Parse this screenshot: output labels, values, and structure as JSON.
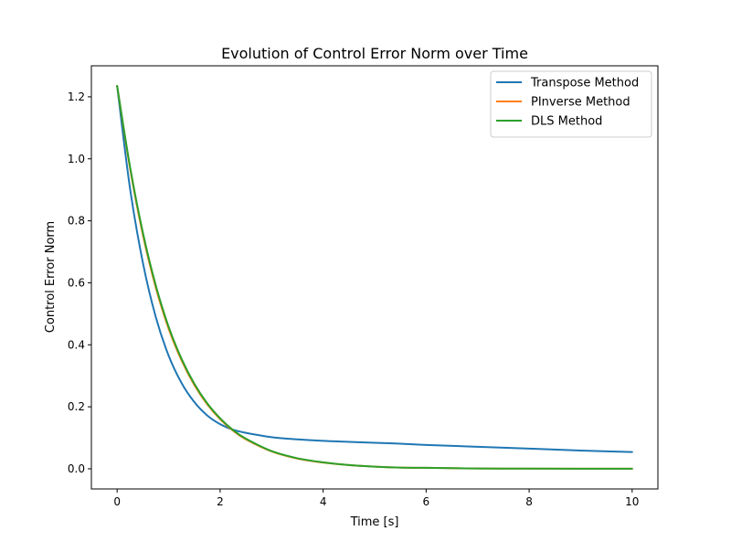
{
  "chart_data": {
    "type": "line",
    "title": "Evolution of Control Error Norm over Time",
    "xlabel": "Time [s]",
    "ylabel": "Control Error Norm",
    "xlim": [
      -0.5,
      10.5
    ],
    "ylim": [
      -0.065,
      1.3
    ],
    "xticks": [
      0,
      2,
      4,
      6,
      8,
      10
    ],
    "xtick_labels": [
      "0",
      "2",
      "4",
      "6",
      "8",
      "10"
    ],
    "yticks": [
      0.0,
      0.2,
      0.4,
      0.6,
      0.8,
      1.0,
      1.2
    ],
    "ytick_labels": [
      "0.0",
      "0.2",
      "0.4",
      "0.6",
      "0.8",
      "1.0",
      "1.2"
    ],
    "grid": false,
    "legend_position": "top-right",
    "x": [
      0,
      0.25,
      0.5,
      0.75,
      1.0,
      1.25,
      1.5,
      1.75,
      2.0,
      2.25,
      2.5,
      3.0,
      3.5,
      4.0,
      4.5,
      5.0,
      5.5,
      6.0,
      7.0,
      8.0,
      9.0,
      10.0
    ],
    "series": [
      {
        "name": "Transpose Method",
        "color": "#1f77b4",
        "values": [
          1.235,
          0.905,
          0.665,
          0.49,
          0.365,
          0.277,
          0.215,
          0.172,
          0.144,
          0.126,
          0.116,
          0.102,
          0.095,
          0.09,
          0.087,
          0.084,
          0.081,
          0.077,
          0.071,
          0.065,
          0.059,
          0.054
        ]
      },
      {
        "name": "PInverse Method",
        "color": "#ff7f0e",
        "values": [
          1.235,
          0.97,
          0.755,
          0.585,
          0.452,
          0.35,
          0.27,
          0.208,
          0.16,
          0.123,
          0.095,
          0.056,
          0.033,
          0.02,
          0.012,
          0.007,
          0.004,
          0.003,
          0.001,
          0.0005,
          0.0002,
          0.0001
        ]
      },
      {
        "name": "DLS Method",
        "color": "#2ca02c",
        "values": [
          1.235,
          0.975,
          0.762,
          0.592,
          0.458,
          0.355,
          0.274,
          0.211,
          0.163,
          0.125,
          0.097,
          0.057,
          0.034,
          0.021,
          0.012,
          0.007,
          0.004,
          0.003,
          0.001,
          0.0005,
          0.0002,
          0.0001
        ]
      }
    ]
  }
}
